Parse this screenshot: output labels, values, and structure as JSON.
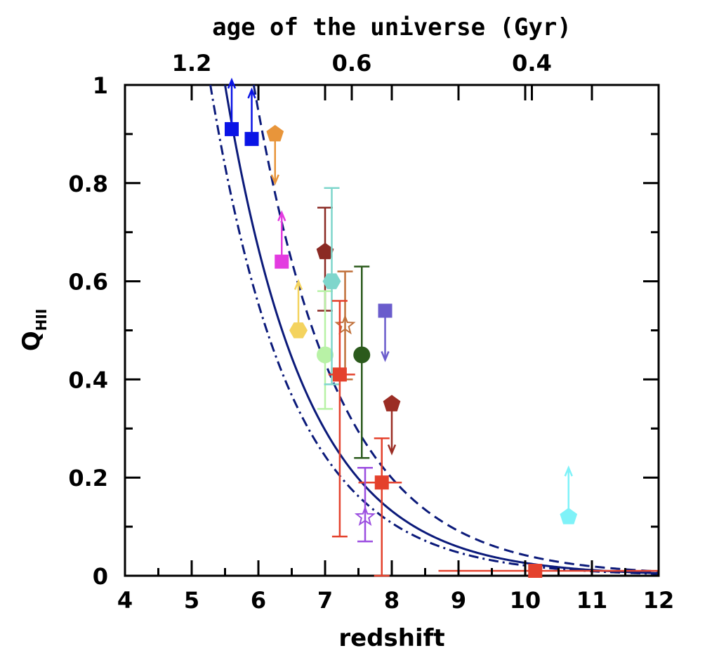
{
  "chart_data": {
    "type": "scatter",
    "xlabel": "redshift",
    "ylabel_main": "Q",
    "ylabel_sub": "HII",
    "top_axis_label": "age of the universe (Gyr)",
    "top_tick_labels": [
      {
        "z": 5.0,
        "label": "1.2"
      },
      {
        "z": 7.4,
        "label": "0.6"
      },
      {
        "z": 10.1,
        "label": "0.4"
      }
    ],
    "xlim": [
      4,
      12
    ],
    "ylim": [
      0,
      1
    ],
    "xticks": [
      4,
      5,
      6,
      7,
      8,
      9,
      10,
      11,
      12
    ],
    "yticks": [
      0,
      0.2,
      0.4,
      0.6,
      0.8,
      1
    ],
    "xtick_labels": [
      "4",
      "5",
      "6",
      "7",
      "8",
      "9",
      "10",
      "11",
      "12"
    ],
    "ytick_labels": [
      "0",
      "0.2",
      "0.4",
      "0.6",
      "0.8",
      "1"
    ],
    "grid": false,
    "curves": [
      {
        "style": "solid",
        "z0": 5.5,
        "slope": 0.81
      },
      {
        "style": "dashed",
        "z0": 5.93,
        "slope": 0.78
      },
      {
        "style": "dashdot",
        "z0": 5.28,
        "slope": 0.82
      }
    ],
    "points": [
      {
        "x": 5.6,
        "y": 0.91,
        "marker": "square",
        "color": "#0a14e6",
        "arrow": "up"
      },
      {
        "x": 5.9,
        "y": 0.89,
        "marker": "square",
        "color": "#0a14e6",
        "arrow": "up"
      },
      {
        "x": 6.25,
        "y": 0.9,
        "marker": "pentagon",
        "color": "#e8953a",
        "arrow": "down"
      },
      {
        "x": 6.35,
        "y": 0.64,
        "marker": "square",
        "color": "#e33be0",
        "arrow": "up"
      },
      {
        "x": 6.6,
        "y": 0.5,
        "marker": "hexagon",
        "color": "#f4d35e",
        "arrow": "up"
      },
      {
        "x": 7.0,
        "y": 0.66,
        "marker": "pentagon",
        "color": "#8b2a24",
        "yerr": [
          0.54,
          0.75
        ]
      },
      {
        "x": 7.0,
        "y": 0.45,
        "marker": "circle",
        "color": "#b8f2a6",
        "yerr": [
          0.34,
          0.58
        ]
      },
      {
        "x": 7.1,
        "y": 0.6,
        "marker": "hexagon",
        "color": "#7fd6cc",
        "yerr": [
          0.39,
          0.79
        ]
      },
      {
        "x": 7.3,
        "y": 0.51,
        "marker": "star-open",
        "color": "#c0703a",
        "yerr": [
          0.4,
          0.62
        ]
      },
      {
        "x": 7.22,
        "y": 0.41,
        "marker": "square",
        "color": "#e4412c",
        "yerr": [
          0.08,
          0.56
        ],
        "xerr": [
          7.05,
          7.45
        ]
      },
      {
        "x": 7.55,
        "y": 0.45,
        "marker": "circle",
        "color": "#2b5a1c",
        "yerr": [
          0.24,
          0.63
        ]
      },
      {
        "x": 7.9,
        "y": 0.54,
        "marker": "square",
        "color": "#6a5ccc",
        "arrow": "down"
      },
      {
        "x": 8.0,
        "y": 0.35,
        "marker": "pentagon",
        "color": "#9b2d24",
        "arrow": "down"
      },
      {
        "x": 7.85,
        "y": 0.19,
        "marker": "square",
        "color": "#e4412c",
        "yerr": [
          0.0,
          0.28
        ],
        "xerr": [
          7.5,
          8.15
        ]
      },
      {
        "x": 7.6,
        "y": 0.12,
        "marker": "star-open",
        "color": "#9b4ee0",
        "yerr": [
          0.07,
          0.22
        ]
      },
      {
        "x": 10.65,
        "y": 0.12,
        "marker": "pentagon",
        "color": "#7ff2f8",
        "arrow": "up"
      },
      {
        "x": 10.15,
        "y": 0.01,
        "marker": "square",
        "color": "#e4412c",
        "xerr": [
          8.7,
          12.0
        ]
      }
    ]
  }
}
